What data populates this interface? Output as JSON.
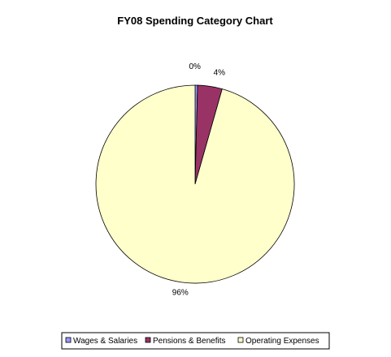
{
  "chart_data": {
    "type": "pie",
    "title": "FY08 Spending Category Chart",
    "categories": [
      "Wages & Salaries",
      "Pensions & Benefits",
      "Operating Expenses"
    ],
    "values": [
      0.4,
      4,
      95.6
    ],
    "data_labels": [
      "0%",
      "4%",
      "96%"
    ],
    "colors": [
      "#9999FF",
      "#993366",
      "#FFFFCC"
    ],
    "legend": "bottom",
    "legend_labels": [
      "Wages & Salaries",
      "Pensions & Benefits",
      "Operating Expenses"
    ]
  }
}
